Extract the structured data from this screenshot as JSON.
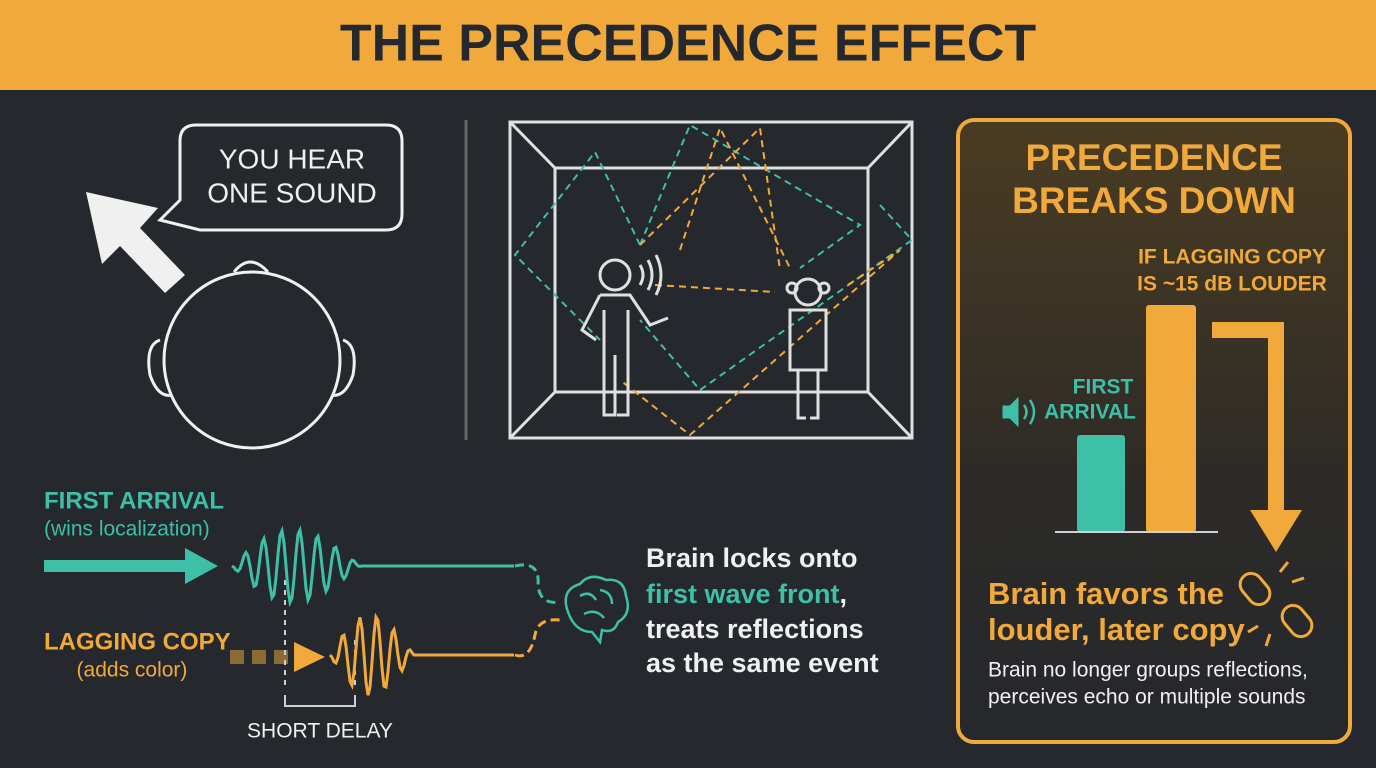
{
  "header": {
    "title": "THE PRECEDENCE EFFECT"
  },
  "bubble": {
    "lines": [
      "YOU HEAR",
      "ONE SOUND"
    ]
  },
  "first_arrival": {
    "label": "FIRST ARRIVAL",
    "note": "(wins localization)"
  },
  "lagging_copy": {
    "label": "LAGGING COPY",
    "note": "(adds color)"
  },
  "delay_label": "SHORT DELAY",
  "brain_text": {
    "line1": "Brain locks onto",
    "highlight": "first wave front",
    "comma": ",",
    "line3": "treats reflections",
    "line4": "as the same event"
  },
  "panel": {
    "title": [
      "PRECEDENCE",
      "BREAKS DOWN"
    ],
    "condition": [
      "IF LAGGING COPY",
      "IS ~15 dB LOUDER"
    ],
    "first_label": [
      "FIRST",
      "ARRIVAL"
    ],
    "result": [
      "Brain favors the",
      "louder, later copy"
    ],
    "detail": [
      "Brain no longer groups reflections,",
      "perceives echo or multiple sounds"
    ]
  }
}
